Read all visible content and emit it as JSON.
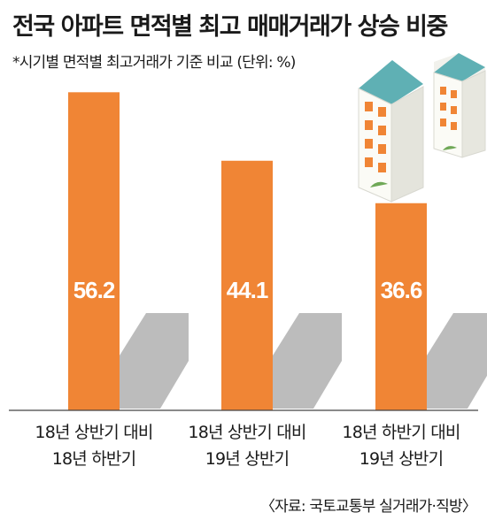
{
  "header": {
    "title": "전국 아파트 면적별 최고 매매거래가 상승 비중",
    "subtitle": "*시기별 면적별 최고거래가 기준 비교 (단위: %)"
  },
  "footer": {
    "source": "〈자료: 국토교통부 실거래가·직방〉"
  },
  "colors": {
    "bar": "#f08535",
    "shadow": "#bcbcbc",
    "axis": "#444444",
    "value_text": "#ffffff"
  },
  "chart_data": {
    "type": "bar",
    "title": "전국 아파트 면적별 최고 매매거래가 상승 비중",
    "subtitle": "*시기별 면적별 최고거래가 기준 비교 (단위: %)",
    "categories": [
      [
        "18년 상반기 대비",
        "18년 하반기"
      ],
      [
        "18년 상반기 대비",
        "19년 상반기"
      ],
      [
        "18년 하반기 대비",
        "19년 상반기"
      ]
    ],
    "values": [
      56.2,
      44.1,
      36.6
    ],
    "ylim": [
      0,
      60
    ],
    "grid": false,
    "legend": "none",
    "data_labels": true
  }
}
